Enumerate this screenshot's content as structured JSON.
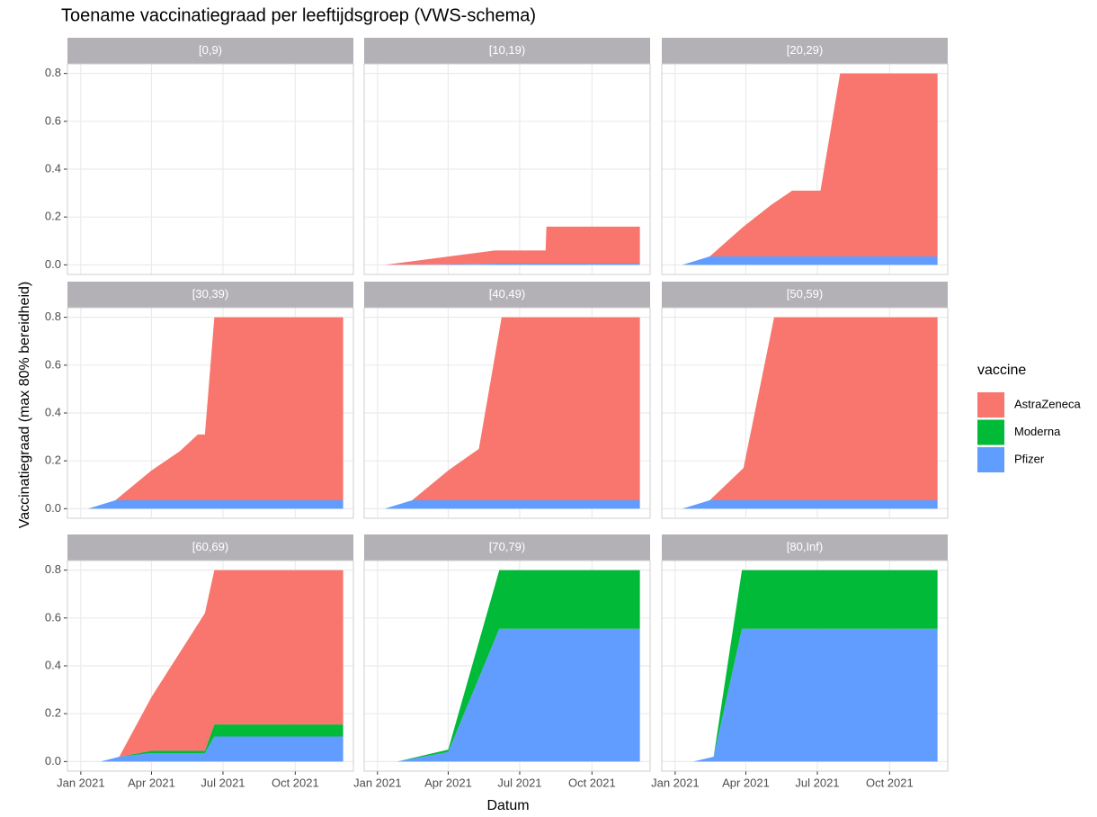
{
  "chart_data": {
    "type": "area",
    "title": "Toename vaccinatiegraad per leeftijdsgroep (VWS-schema)",
    "x_label": "Datum",
    "y_label": "Vaccinatiegraad (max 80% bereidheid)",
    "legend_title": "vaccine",
    "legend_position": "right",
    "stacked": true,
    "grid": true,
    "series": [
      {
        "name": "AstraZeneca",
        "color": "#F8766D"
      },
      {
        "name": "Moderna",
        "color": "#00BA38"
      },
      {
        "name": "Pfizer",
        "color": "#619CFF"
      }
    ],
    "xlim": [
      "2020-12-15",
      "2021-12-14"
    ],
    "xticks": [
      {
        "value": "2021-01-01",
        "label": "Jan 2021"
      },
      {
        "value": "2021-04-01",
        "label": "Apr 2021"
      },
      {
        "value": "2021-07-01",
        "label": "Jul 2021"
      },
      {
        "value": "2021-10-01",
        "label": "Oct 2021"
      }
    ],
    "ylim": [
      -0.04,
      0.84
    ],
    "yticks": [
      {
        "value": 0,
        "label": "0.0"
      },
      0.2,
      0.4,
      0.6,
      0.8
    ],
    "facets": [
      {
        "title": "[0,9)",
        "x": [],
        "series": [
          {
            "values": []
          },
          {
            "values": []
          },
          {
            "values": []
          }
        ]
      },
      {
        "title": "[10,19)",
        "x": [
          "2021-01-10",
          "2021-05-30",
          "2021-08-03",
          "2021-08-04",
          "2021-12-01"
        ],
        "series": [
          {
            "values": [
              0,
              0.055,
              0.055,
              0.155,
              0.155
            ]
          },
          {
            "values": [
              0,
              0,
              0,
              0,
              0
            ]
          },
          {
            "values": [
              0,
              0.005,
              0.005,
              0.005,
              0.005
            ]
          }
        ]
      },
      {
        "title": "[20,29)",
        "x": [
          "2021-01-10",
          "2021-02-14",
          "2021-03-29",
          "2021-05-03",
          "2021-05-30",
          "2021-07-05",
          "2021-07-30",
          "2021-12-01"
        ],
        "series": [
          {
            "values": [
              0,
              0,
              0.125,
              0.215,
              0.275,
              0.275,
              0.765,
              0.765
            ]
          },
          {
            "values": [
              0,
              0,
              0,
              0,
              0,
              0,
              0,
              0
            ]
          },
          {
            "values": [
              0,
              0.035,
              0.035,
              0.035,
              0.035,
              0.035,
              0.035,
              0.035
            ]
          }
        ]
      },
      {
        "title": "[30,39)",
        "x": [
          "2021-01-10",
          "2021-02-14",
          "2021-04-01",
          "2021-05-07",
          "2021-05-30",
          "2021-06-08",
          "2021-06-20",
          "2021-12-01"
        ],
        "series": [
          {
            "values": [
              0,
              0,
              0.125,
              0.205,
              0.275,
              0.275,
              0.765,
              0.765
            ]
          },
          {
            "values": [
              0,
              0,
              0,
              0,
              0,
              0,
              0,
              0
            ]
          },
          {
            "values": [
              0,
              0.035,
              0.035,
              0.035,
              0.035,
              0.035,
              0.035,
              0.035
            ]
          }
        ]
      },
      {
        "title": "[40,49)",
        "x": [
          "2021-01-10",
          "2021-02-14",
          "2021-04-01",
          "2021-05-10",
          "2021-06-08",
          "2021-12-01"
        ],
        "series": [
          {
            "values": [
              0,
              0,
              0.125,
              0.215,
              0.765,
              0.765
            ]
          },
          {
            "values": [
              0,
              0,
              0,
              0,
              0,
              0
            ]
          },
          {
            "values": [
              0,
              0.035,
              0.035,
              0.035,
              0.035,
              0.035
            ]
          }
        ]
      },
      {
        "title": "[50,59)",
        "x": [
          "2021-01-10",
          "2021-02-14",
          "2021-03-29",
          "2021-05-07",
          "2021-12-01"
        ],
        "series": [
          {
            "values": [
              0,
              0,
              0.135,
              0.765,
              0.765
            ]
          },
          {
            "values": [
              0,
              0,
              0,
              0,
              0
            ]
          },
          {
            "values": [
              0,
              0.035,
              0.035,
              0.035,
              0.035
            ]
          }
        ]
      },
      {
        "title": "[60,69)",
        "x": [
          "2021-01-26",
          "2021-02-19",
          "2021-04-01",
          "2021-06-08",
          "2021-06-20",
          "2021-12-01"
        ],
        "series": [
          {
            "values": [
              0,
              0,
              0.225,
              0.575,
              0.645,
              0.645
            ]
          },
          {
            "values": [
              0,
              0,
              0.01,
              0.01,
              0.05,
              0.05
            ]
          },
          {
            "values": [
              0,
              0.02,
              0.035,
              0.035,
              0.105,
              0.105
            ]
          }
        ]
      },
      {
        "title": "[70,79)",
        "x": [
          "2021-01-26",
          "2021-04-01",
          "2021-06-05",
          "2021-12-01"
        ],
        "series": [
          {
            "values": [
              0,
              0,
              0,
              0
            ]
          },
          {
            "values": [
              0,
              0.01,
              0.245,
              0.245
            ]
          },
          {
            "values": [
              0,
              0.04,
              0.555,
              0.555
            ]
          }
        ]
      },
      {
        "title": "[80,Inf)",
        "x": [
          "2021-01-24",
          "2021-02-19",
          "2021-03-27",
          "2021-12-01"
        ],
        "series": [
          {
            "values": [
              0,
              0,
              0,
              0
            ]
          },
          {
            "values": [
              0,
              0,
              0.245,
              0.245
            ]
          },
          {
            "values": [
              0,
              0.02,
              0.555,
              0.555
            ]
          }
        ]
      }
    ]
  }
}
